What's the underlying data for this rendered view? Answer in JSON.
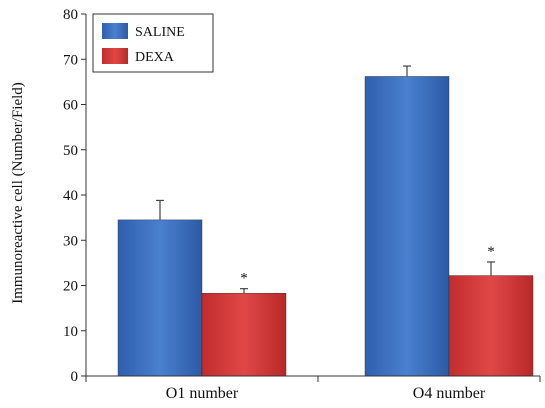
{
  "chart_data": {
    "type": "bar",
    "categories": [
      "O1 number",
      "O4 number"
    ],
    "series": [
      {
        "name": "SALINE",
        "values": [
          34.5,
          66.2
        ],
        "errors": [
          4.3,
          2.3
        ],
        "color": "#3f73c2"
      },
      {
        "name": "DEXA",
        "values": [
          18.3,
          22.2
        ],
        "errors": [
          1.0,
          3.0
        ],
        "color": "#d93a3a"
      }
    ],
    "annotations": [
      {
        "series": "DEXA",
        "category": "O1 number",
        "text": "*"
      },
      {
        "series": "DEXA",
        "category": "O4 number",
        "text": "*"
      }
    ],
    "title": "",
    "xlabel": "",
    "ylabel": "Immunoreactive cell (Number/Field)",
    "ylim": [
      0,
      80
    ],
    "yticks": [
      0,
      10,
      20,
      30,
      40,
      50,
      60,
      70,
      80
    ],
    "legend_position": "top-left",
    "grid": false
  }
}
